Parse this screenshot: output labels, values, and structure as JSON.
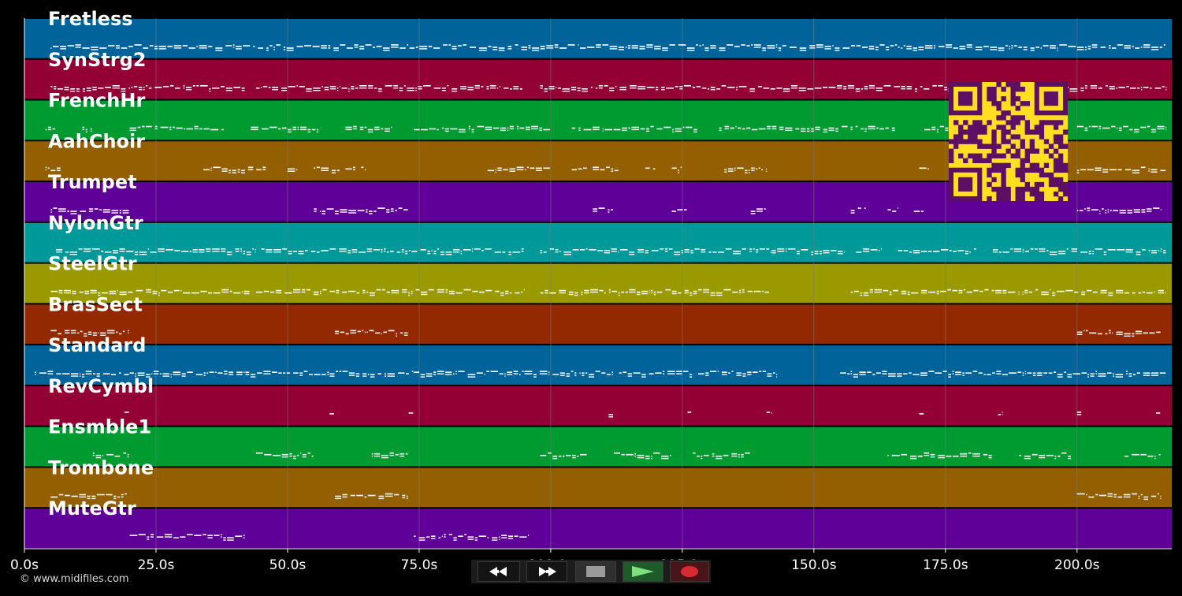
{
  "copyright": "© www.midifiles.com",
  "colors": {
    "background": "#000000",
    "grid": "#7a7a7a",
    "notes": "#ffffff",
    "qr_bg": "#ffe020",
    "qr_fg": "#5c0f63"
  },
  "axis": {
    "min_seconds": 0,
    "max_seconds": 218,
    "ticks": [
      {
        "value": 0,
        "label": "0.0s"
      },
      {
        "value": 25,
        "label": "25.0s"
      },
      {
        "value": 50,
        "label": "50.0s"
      },
      {
        "value": 75,
        "label": "75.0s"
      },
      {
        "value": 100,
        "label": "100.0s"
      },
      {
        "value": 125,
        "label": "125.0s"
      },
      {
        "value": 150,
        "label": "150.0s"
      },
      {
        "value": 175,
        "label": "175.0s"
      },
      {
        "value": 200,
        "label": "200.0s"
      }
    ]
  },
  "tracks": [
    {
      "name": "Fretless",
      "color": "#00649a",
      "segments": [
        [
          5,
          217
        ]
      ]
    },
    {
      "name": "SynStrg2",
      "color": "#930034",
      "segments": [
        [
          5,
          42
        ],
        [
          44,
          95
        ],
        [
          98,
          217
        ]
      ]
    },
    {
      "name": "FrenchHr",
      "color": "#009b30",
      "segments": [
        [
          4,
          6
        ],
        [
          11,
          13
        ],
        [
          20,
          38
        ],
        [
          43,
          56
        ],
        [
          61,
          70
        ],
        [
          74,
          100
        ],
        [
          104,
          128
        ],
        [
          132,
          166
        ],
        [
          171,
          184
        ],
        [
          200,
          217
        ]
      ]
    },
    {
      "name": "AahChoir",
      "color": "#945f00",
      "segments": [
        [
          4,
          7
        ],
        [
          34,
          46
        ],
        [
          50,
          52
        ],
        [
          55,
          60
        ],
        [
          61,
          63
        ],
        [
          64,
          65
        ],
        [
          88,
          100
        ],
        [
          104,
          107
        ],
        [
          108,
          113
        ],
        [
          118,
          120
        ],
        [
          123,
          125
        ],
        [
          133,
          141
        ],
        [
          170,
          172
        ],
        [
          200,
          217
        ]
      ]
    },
    {
      "name": "Trumpet",
      "color": "#5f0098",
      "segments": [
        [
          5,
          20
        ],
        [
          55,
          73
        ],
        [
          108,
          112
        ],
        [
          123,
          126
        ],
        [
          138,
          141
        ],
        [
          157,
          160
        ],
        [
          164,
          166
        ],
        [
          169,
          171
        ],
        [
          200,
          216
        ]
      ]
    },
    {
      "name": "NylonGtr",
      "color": "#00999a",
      "segments": [
        [
          6,
          44
        ],
        [
          45,
          95
        ],
        [
          98,
          142
        ],
        [
          142,
          156
        ],
        [
          158,
          163
        ],
        [
          166,
          181
        ],
        [
          184,
          217
        ]
      ]
    },
    {
      "name": "SteelGtr",
      "color": "#9a9a00",
      "segments": [
        [
          5,
          43
        ],
        [
          44,
          95
        ],
        [
          98,
          142
        ],
        [
          157,
          217
        ]
      ]
    },
    {
      "name": "BrasSect",
      "color": "#932900",
      "segments": [
        [
          5,
          20
        ],
        [
          59,
          73
        ],
        [
          200,
          216
        ]
      ]
    },
    {
      "name": "Standard",
      "color": "#00649a",
      "segments": [
        [
          2,
          20
        ],
        [
          20,
          42
        ],
        [
          42,
          58
        ],
        [
          58,
          74
        ],
        [
          74,
          95
        ],
        [
          95,
          112
        ],
        [
          113,
          127
        ],
        [
          128,
          143
        ],
        [
          155,
          157
        ],
        [
          157,
          173
        ],
        [
          173,
          187
        ],
        [
          187,
          202
        ],
        [
          202,
          217
        ]
      ]
    },
    {
      "name": "RevCymbl",
      "color": "#930034",
      "segments": [
        [
          19,
          20
        ],
        [
          58,
          59
        ],
        [
          73,
          74
        ],
        [
          111,
          112
        ],
        [
          126,
          127
        ],
        [
          141,
          142
        ],
        [
          170,
          171
        ],
        [
          185,
          186
        ],
        [
          200,
          201
        ],
        [
          215,
          216
        ]
      ]
    },
    {
      "name": "Ensmble1",
      "color": "#009b30",
      "segments": [
        [
          13,
          20
        ],
        [
          44,
          55
        ],
        [
          66,
          73
        ],
        [
          98,
          107
        ],
        [
          112,
          123
        ],
        [
          127,
          138
        ],
        [
          164,
          184
        ],
        [
          189,
          199
        ],
        [
          209,
          216
        ]
      ]
    },
    {
      "name": "Trombone",
      "color": "#945f00",
      "segments": [
        [
          5,
          20
        ],
        [
          59,
          73
        ],
        [
          200,
          216
        ]
      ]
    },
    {
      "name": "MuteGtr",
      "color": "#5f0098",
      "segments": [
        [
          20,
          42
        ],
        [
          74,
          96
        ]
      ]
    }
  ],
  "transport": {
    "rewind": "rewind-icon",
    "forward": "fast-forward-icon",
    "stop": "stop-icon",
    "play": "play-icon",
    "record": "record-icon"
  }
}
